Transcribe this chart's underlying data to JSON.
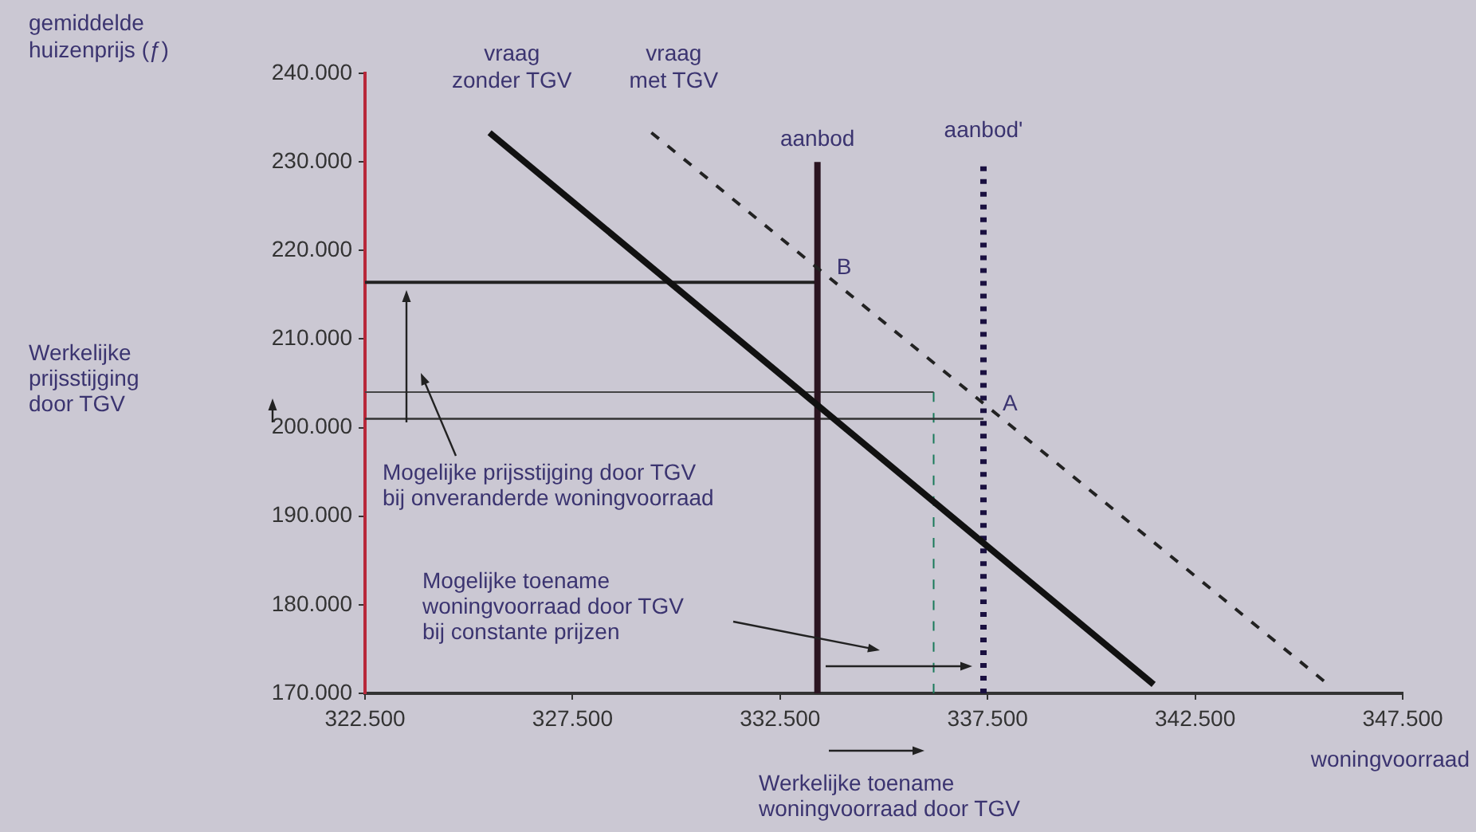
{
  "chart_data": {
    "type": "line",
    "xlabel": "woningvoorraad",
    "ylabel": "gemiddelde\nhuizenprijs (ƒ)",
    "xlim": [
      322500,
      347500
    ],
    "xticks": [
      {
        "value": 322500,
        "label": "322.500"
      },
      {
        "value": 327500,
        "label": "327.500"
      },
      {
        "value": 332500,
        "label": "332.500"
      },
      {
        "value": 337500,
        "label": "337.500"
      },
      {
        "value": 342500,
        "label": "342.500"
      },
      {
        "value": 347500,
        "label": "347.500"
      }
    ],
    "ylim": [
      170000,
      240000
    ],
    "yticks": [
      {
        "value": 170000,
        "label": "170.000"
      },
      {
        "value": 180000,
        "label": "180.000"
      },
      {
        "value": 190000,
        "label": "190.000"
      },
      {
        "value": 200000,
        "label": "200.000"
      },
      {
        "value": 210000,
        "label": "210.000"
      },
      {
        "value": 220000,
        "label": "220.000"
      },
      {
        "value": 230000,
        "label": "230.000"
      },
      {
        "value": 240000,
        "label": "240.000"
      }
    ],
    "grid": false,
    "legend": false,
    "marker": "none",
    "series": [
      {
        "name": "vraag\nzonder TGV",
        "color": "#111111",
        "x": [
          325500,
          341500
        ],
        "values": [
          233300,
          171000
        ],
        "line_style": "solid"
      },
      {
        "name": "vraag\nmet TGV",
        "color": "#222222",
        "x": [
          329400,
          345600
        ],
        "values": [
          233300,
          171400
        ],
        "line_style": "dashed"
      },
      {
        "name": "aanbod",
        "color": "#2a1420",
        "x": [
          333400,
          333400
        ],
        "values": [
          170000,
          230000
        ],
        "line_style": "solid"
      },
      {
        "name": "aanbod'",
        "color": "#1a1040",
        "x": [
          337400,
          337400
        ],
        "values": [
          170000,
          229500
        ],
        "line_style": "dotted"
      },
      {
        "color": "#222222",
        "x": [
          322500,
          333400
        ],
        "values": [
          216400,
          216400
        ],
        "line_style": "solid"
      },
      {
        "color": "#333333",
        "x": [
          322500,
          337400
        ],
        "values": [
          201000,
          201000
        ],
        "line_style": "solid"
      },
      {
        "color": "#444444",
        "x": [
          322500,
          336200
        ],
        "values": [
          204000,
          204000
        ],
        "line_style": "solid"
      },
      {
        "color": "#1a7a5a",
        "x": [
          336200,
          336200
        ],
        "values": [
          170000,
          204000
        ],
        "line_style": "dashed"
      }
    ],
    "annotations": [
      "Werkelijke\nprijsstijging\ndoor TGV",
      "Mogelijke prijsstijging door TGV\nbij onveranderde woningvoorraad",
      "Mogelijke toename\nwoningvoorraad door TGV\nbij constante prijzen",
      "Werkelijke toename\nwoningvoorraad door TGV",
      {
        "text": "A",
        "x": 337400,
        "y": 201000
      },
      {
        "text": "B",
        "x": 333400,
        "y": 216400
      }
    ]
  }
}
